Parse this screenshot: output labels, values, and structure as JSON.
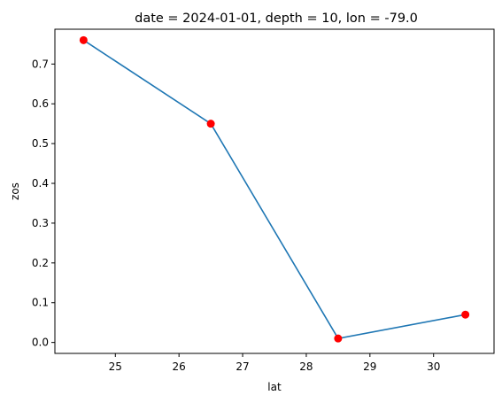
{
  "chart_data": {
    "type": "line",
    "title": "date = 2024-01-01, depth = 10, lon = -79.0",
    "xlabel": "lat",
    "ylabel": "zos",
    "xlim": [
      24.05,
      30.95
    ],
    "ylim": [
      -0.0275,
      0.7875
    ],
    "xticks": [
      25,
      26,
      27,
      28,
      29,
      30
    ],
    "yticks": [
      0.0,
      0.1,
      0.2,
      0.3,
      0.4,
      0.5,
      0.6,
      0.7
    ],
    "grid": false,
    "series": [
      {
        "x": [
          24.5,
          26.5,
          28.5,
          30.5
        ],
        "y": [
          0.76,
          0.55,
          0.01,
          0.07
        ],
        "line_color": "#1f77b4",
        "marker_color": "#ff0000"
      }
    ]
  }
}
